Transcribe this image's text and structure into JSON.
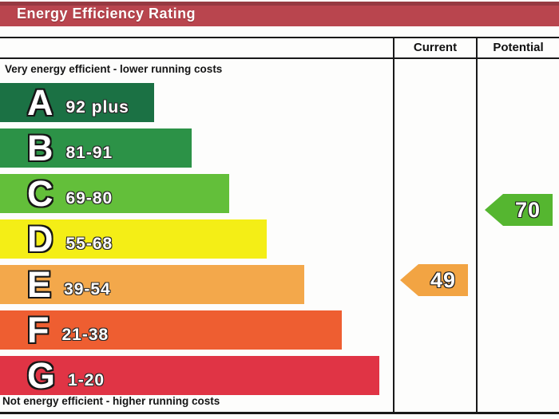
{
  "title": "Energy Efficiency Rating",
  "header": {
    "current_label": "Current",
    "potential_label": "Potential"
  },
  "captions": {
    "top": "Very energy efficient - lower running costs",
    "bottom": "Not energy efficient - higher running costs"
  },
  "colors": {
    "title_bar": "#b9454e",
    "title_bar_edge": "#963a42",
    "rule": "#191919"
  },
  "chart_data": {
    "type": "bar",
    "title": "Energy Efficiency Rating",
    "orientation": "horizontal",
    "categories": [
      "A",
      "B",
      "C",
      "D",
      "E",
      "F",
      "G"
    ],
    "bands": [
      {
        "letter": "A",
        "range": "92 plus",
        "color": "#1b7144"
      },
      {
        "letter": "B",
        "range": "81-91",
        "color": "#2c9247"
      },
      {
        "letter": "C",
        "range": "69-80",
        "color": "#63bf3a"
      },
      {
        "letter": "D",
        "range": "55-68",
        "color": "#f4ee16"
      },
      {
        "letter": "E",
        "range": "39-54",
        "color": "#f3a84b"
      },
      {
        "letter": "F",
        "range": "21-38",
        "color": "#ee5e31"
      },
      {
        "letter": "G",
        "range": "1-20",
        "color": "#e03445"
      }
    ],
    "current": {
      "value": 49,
      "band": "E",
      "color": "#f2a443"
    },
    "potential": {
      "value": 70,
      "band": "C",
      "color": "#55b630"
    }
  }
}
